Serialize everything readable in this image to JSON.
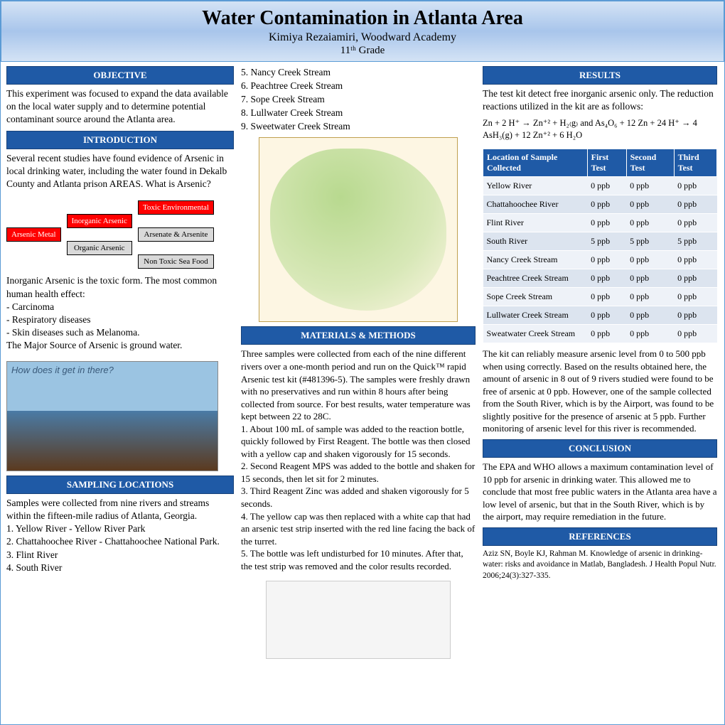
{
  "header": {
    "title": "Water Contamination in Atlanta Area",
    "author": "Kimiya Rezaiamiri, Woodward Academy",
    "grade": "11ᵗʰ Grade"
  },
  "sections": {
    "objective": "OBJECTIVE",
    "introduction": "INTRODUCTION",
    "sampling": "SAMPLING LOCATIONS",
    "materials": "MATERIALS & METHODS",
    "results": "RESULTS",
    "conclusion": "CONCLUSION",
    "references": "REFERENCES"
  },
  "objective_text": "This experiment was focused to expand the data available on the local water supply and to determine potential contaminant source around the Atlanta area.",
  "intro_text": "Several recent studies have found evidence of Arsenic in local drinking water, including the water found in Dekalb County and Atlanta prison AREAS. What is Arsenic?",
  "diagram": {
    "box1": "Arsenic Metal",
    "box2": "Inorganic Arsenic",
    "box3": "Organic Arsenic",
    "box4": "Toxic Environmental",
    "box5": "Arsenate & Arsenite",
    "box6": "Non Toxic Sea Food"
  },
  "health_text": "Inorganic Arsenic is the toxic form. The most common human health effect:\n- Carcinoma\n- Respiratory diseases\n- Skin diseases such as Melanoma.\nThe Major Source of Arsenic is ground water.",
  "infographic_title": "How does it get in there?",
  "sampling_text": "Samples were collected from nine rivers and streams within the fifteen-mile radius of Atlanta, Georgia.\n1. Yellow River - Yellow River Park\n2. Chattahoochee River - Chattahoochee National Park.\n3. Flint River\n4. South River",
  "sampling_continued": "5. Nancy Creek Stream\n6. Peachtree Creek Stream\n7. Sope Creek Stream\n8. Lullwater Creek Stream\n9. Sweetwater Creek Stream",
  "materials_text": "Three samples were collected from each of the nine different rivers over a one-month period and run on the Quick™ rapid Arsenic test kit (#481396-5). The samples were  freshly drawn with no preservatives and run within 8 hours after being collected from source. For best results, water temperature was kept between 22 to 28C.\n1. About 100 mL of sample was added to the reaction bottle, quickly followed by First Reagent. The bottle was then closed with a yellow cap and shaken vigorously for 15 seconds.\n2. Second Reagent MPS was added to the bottle and shaken for 15 seconds, then let sit for 2 minutes.\n3. Third Reagent Zinc  was added and shaken vigorously for 5 seconds.\n4. The yellow cap was then replaced with a white cap that had an arsenic test strip inserted with the red line facing the back of the turret.\n5. The bottle was left undisturbed for 10 minutes. After that, the test strip was removed and the color results recorded.",
  "results_intro": "The test kit detect free inorganic arsenic only. The reduction reactions utilized in the kit are as follows:",
  "results_eq": "Zn + 2 H⁺ → Zn⁺² + H₂₍g₎ and As₄O₆ + 12 Zn + 24 H⁺ → 4 AsH₃(g) + 12 Zn⁺² + 6 H₂O",
  "table": {
    "headers": [
      "Location of Sample Collected",
      "First Test",
      "Second Test",
      "Third Test"
    ],
    "rows": [
      [
        "Yellow River",
        "0 ppb",
        "0 ppb",
        "0 ppb"
      ],
      [
        "Chattahoochee River",
        "0 ppb",
        "0 ppb",
        "0 ppb"
      ],
      [
        "Flint River",
        "0 ppb",
        "0 ppb",
        "0 ppb"
      ],
      [
        "South River",
        "5 ppb",
        "5 ppb",
        "5 ppb"
      ],
      [
        "Nancy Creek Stream",
        "0 ppb",
        "0 ppb",
        "0 ppb"
      ],
      [
        "Peachtree Creek Stream",
        "0 ppb",
        "0 ppb",
        "0 ppb"
      ],
      [
        "Sope Creek Stream",
        "0 ppb",
        "0 ppb",
        "0 ppb"
      ],
      [
        "Lullwater Creek Stream",
        "0 ppb",
        "0 ppb",
        "0 ppb"
      ],
      [
        "Sweatwater Creek Stream",
        "0 ppb",
        "0 ppb",
        "0 ppb"
      ]
    ]
  },
  "results_discussion": "The kit can reliably measure arsenic level from 0 to 500 ppb when using correctly. Based on the results obtained here, the amount of arsenic in 8 out of 9 rivers studied were found to be free of arsenic at 0 ppb. However, one of the sample collected from the South River, which is by the Airport, was found to be slightly positive for the presence of arsenic at 5 ppb. Further monitoring of arsenic level for this river is recommended.",
  "conclusion_text": "The EPA and WHO allows a maximum contamination level of 10 ppb  for arsenic in drinking water. This allowed me to conclude that most free public waters in the Atlanta area have a low level of arsenic, but that in the South River, which is by the airport, may require remediation in the future.",
  "references_text": "Aziz SN, Boyle KJ, Rahman M. Knowledge of arsenic in drinking-water: risks and avoidance in Matlab, Bangladesh. J Health Popul Nutr. 2006;24(3):327-335."
}
